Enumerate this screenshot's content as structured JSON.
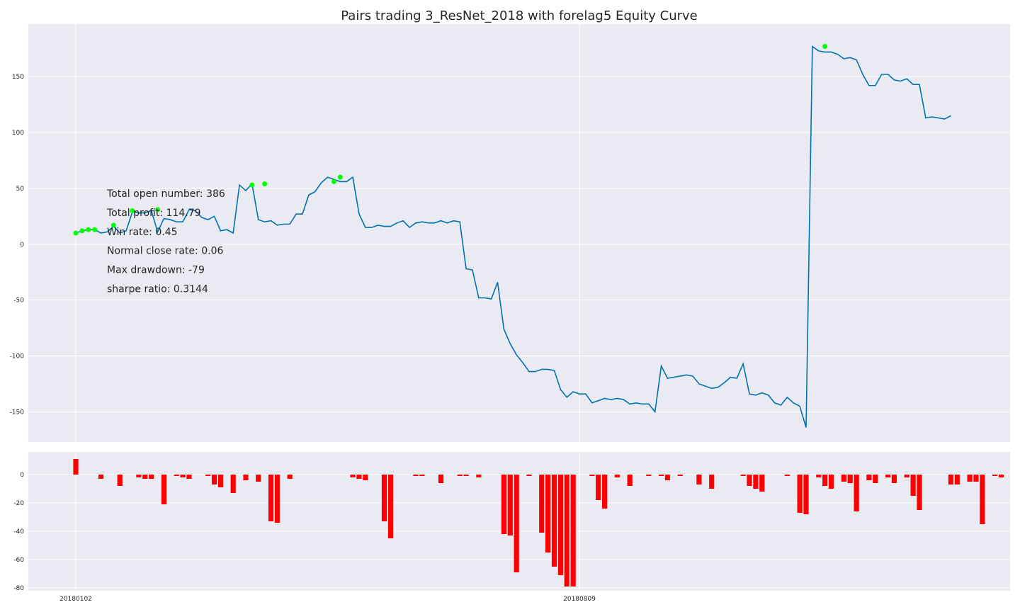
{
  "chart_data": [
    {
      "type": "line",
      "title": "Pairs trading 3_ResNet_2018 with forelag5 Equity Curve",
      "xlabel": "",
      "ylabel": "",
      "grid": true,
      "x_ticks": [
        "20180102",
        "20180809"
      ],
      "x_tick_index": [
        0,
        80
      ],
      "ylim": [
        -177,
        197
      ],
      "y_ticks": [
        -150,
        -100,
        -50,
        0,
        50,
        100,
        150
      ],
      "series": [
        {
          "color": "#0072B2",
          "values": [
            10,
            12,
            13,
            13,
            10,
            11,
            16,
            10,
            12,
            29,
            28,
            28,
            30,
            11,
            23,
            22,
            20,
            20,
            31,
            30,
            24,
            22,
            25,
            12,
            13,
            10,
            53,
            48,
            54,
            22,
            20,
            21,
            17,
            18,
            18,
            27,
            27,
            44,
            47,
            55,
            60,
            58,
            56,
            56,
            60,
            27,
            15,
            15,
            17,
            16,
            16,
            19,
            21,
            15,
            19,
            20,
            19,
            19,
            21,
            19,
            21,
            20,
            -22,
            -23,
            -48,
            -48,
            -49,
            -34,
            -76,
            -89,
            -99,
            -106,
            -114,
            -114,
            -112,
            -112,
            -113,
            -130,
            -137,
            -132,
            -134,
            -134,
            -142,
            -140,
            -138,
            -139,
            -138,
            -139,
            -143,
            -142,
            -143,
            -143,
            -150,
            -109,
            -120,
            -119,
            -118,
            -117,
            -118,
            -125,
            -127,
            -129,
            -128,
            -124,
            -119,
            -120,
            -107,
            -134,
            -135,
            -133,
            -135,
            -142,
            -144,
            -137,
            -142,
            -145,
            -164,
            177,
            173,
            172,
            172,
            170,
            166,
            167,
            165,
            152,
            142,
            142,
            152,
            152,
            147,
            146,
            148,
            143,
            143,
            113,
            114,
            113,
            112,
            115
          ]
        }
      ],
      "markers": {
        "color": "#00FF00",
        "points": [
          [
            0,
            10
          ],
          [
            1,
            12
          ],
          [
            2,
            13
          ],
          [
            3,
            13
          ],
          [
            6,
            17
          ],
          [
            9,
            30
          ],
          [
            13,
            31
          ],
          [
            28,
            53
          ],
          [
            30,
            54
          ],
          [
            41,
            56
          ],
          [
            42,
            60
          ],
          [
            119,
            177
          ]
        ]
      },
      "annotations": [
        "Total open number: 386",
        "Total profit: 114.79",
        "Win rate: 0.45",
        "Normal close rate: 0.06",
        "Max drawdown: -79",
        "sharpe ratio: 0.3144"
      ]
    },
    {
      "type": "bar",
      "ylim": [
        -82,
        16
      ],
      "y_ticks": [
        -80,
        -60,
        -40,
        -20,
        0
      ],
      "bar_color": "#FF0000",
      "values": [
        11,
        0,
        0,
        0,
        -3,
        0,
        0,
        -8,
        0,
        0,
        -2,
        -3,
        -3,
        0,
        -21,
        0,
        -1,
        -2,
        -3,
        0,
        0,
        -1,
        -7,
        -9,
        0,
        -13,
        0,
        -4,
        0,
        -5,
        0,
        -33,
        -34,
        0,
        -3,
        0,
        0,
        0,
        0,
        0,
        0,
        0,
        0,
        0,
        -2,
        -3,
        -4,
        0,
        0,
        -33,
        -45,
        0,
        0,
        0,
        -1,
        -1,
        0,
        0,
        -6,
        0,
        0,
        -1,
        -1,
        0,
        -2,
        0,
        0,
        0,
        -42,
        -43,
        -69,
        0,
        -1,
        0,
        -41,
        -55,
        -65,
        -71,
        -79,
        -79,
        0,
        0,
        -1,
        -18,
        -24,
        0,
        -2,
        0,
        -8,
        0,
        0,
        -1,
        0,
        -1,
        -4,
        0,
        -1,
        0,
        0,
        -7,
        0,
        -10,
        0,
        0,
        0,
        0,
        -1,
        -8,
        -10,
        -12,
        0,
        0,
        0,
        -1,
        0,
        -27,
        -28,
        0,
        -2,
        -8,
        -10,
        0,
        -5,
        -6,
        -26,
        0,
        -4,
        -6,
        0,
        -2,
        -6,
        0,
        -2,
        -15,
        -25,
        0,
        0,
        0,
        0,
        -7,
        -7,
        0,
        -5,
        -5,
        -35,
        0,
        -1,
        -2
      ]
    }
  ]
}
